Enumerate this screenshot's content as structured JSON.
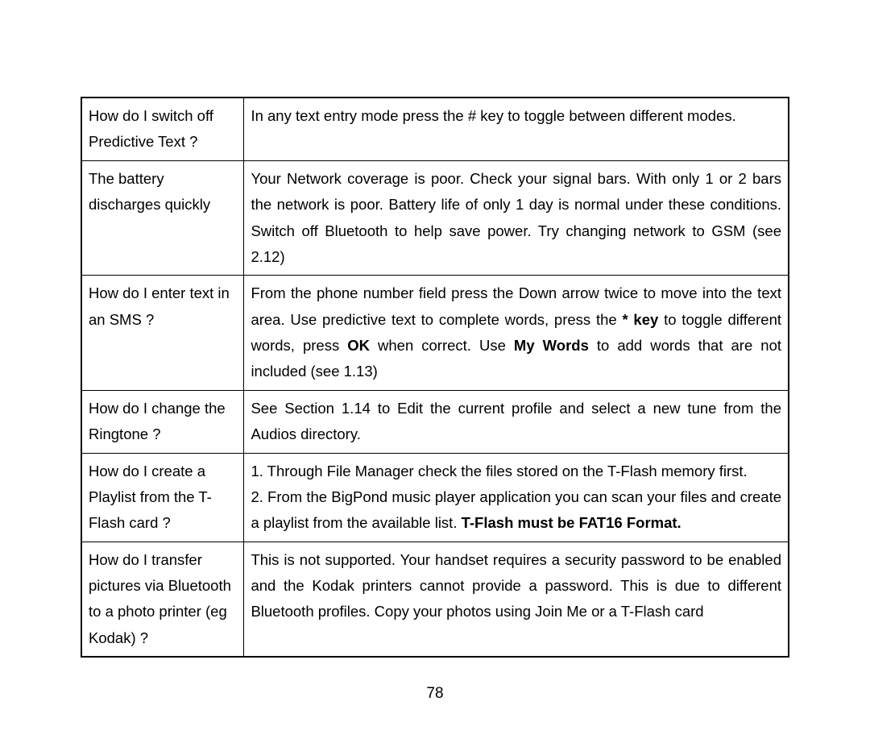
{
  "table": {
    "border_color": "#000000",
    "background_color": "#ffffff",
    "font_family": "Arial",
    "font_size": 18.5,
    "line_height": 1.75,
    "text_color": "#000000",
    "columns": [
      "question",
      "answer"
    ],
    "column_widths": [
      "23%",
      "77%"
    ],
    "rows": [
      {
        "question": "How do I switch off Predictive Text ?",
        "answer_parts": [
          {
            "text": "In any text entry mode press the # key to toggle between different modes.",
            "bold": false
          }
        ],
        "answer_align": "justify"
      },
      {
        "question": "The battery discharges quickly",
        "answer_parts": [
          {
            "text": "Your Network coverage is poor. Check your signal bars. With only 1 or 2 bars the network is poor. Battery life of only 1 day is normal under these conditions. Switch off Bluetooth to help save power. Try changing network to GSM (see 2.12)",
            "bold": false
          }
        ],
        "answer_align": "justify"
      },
      {
        "question": "How do I enter text in an SMS ?",
        "answer_parts": [
          {
            "text": "From the phone number field press the Down arrow twice to move into the text area. Use predictive text to complete words, press the ",
            "bold": false
          },
          {
            "text": "* key",
            "bold": true
          },
          {
            "text": " to toggle different words, press ",
            "bold": false
          },
          {
            "text": "OK",
            "bold": true
          },
          {
            "text": " when correct. Use ",
            "bold": false
          },
          {
            "text": "My Words",
            "bold": true
          },
          {
            "text": " to add words that are not included (see 1.13)",
            "bold": false
          }
        ],
        "answer_align": "justify"
      },
      {
        "question": "How do I change the Ringtone ?",
        "answer_parts": [
          {
            "text": "See Section 1.14 to Edit the current profile and select a new tune from the Audios directory.",
            "bold": false
          }
        ],
        "answer_align": "justify"
      },
      {
        "question": "How do I create a Playlist from the T-Flash card ?",
        "answer_parts": [
          {
            "text": "1. Through File Manager check the files stored on the T-Flash memory first.",
            "bold": false
          },
          {
            "text": "\n",
            "bold": false
          },
          {
            "text": "2. From the BigPond music player application you can scan your files and create a playlist from the available list. ",
            "bold": false
          },
          {
            "text": "T-Flash must be FAT16 Format.",
            "bold": true
          }
        ],
        "answer_align": "justify"
      },
      {
        "question": "How do I transfer pictures via Bluetooth to a photo printer (eg Kodak) ?",
        "answer_parts": [
          {
            "text": "This is not supported. Your handset requires a security password to be enabled and the Kodak printers cannot provide a password. This is due to different Bluetooth profiles. Copy your photos using Join Me or a T-Flash card",
            "bold": false
          }
        ],
        "answer_align": "justify"
      }
    ]
  },
  "page_number": "78"
}
